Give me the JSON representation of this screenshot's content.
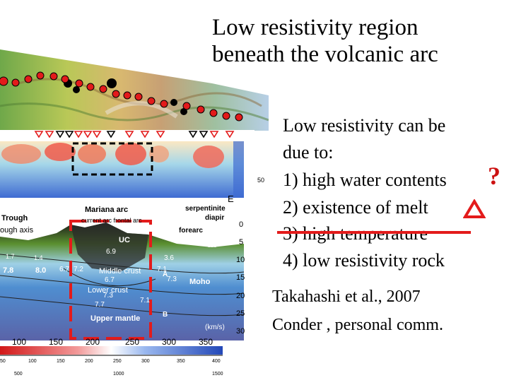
{
  "title": {
    "line1": "Low resistivity region",
    "line2": "beneath the volcanic arc"
  },
  "body": {
    "intro1": "Low resistivity can be",
    "intro2": "due to:",
    "item1": "1) high water contents",
    "item2": "2) existence of melt",
    "item3": "3) high temperature",
    "item4": "4) low resistivity rock",
    "item1_mark": "?",
    "item2_mark": "triangle-outline-icon",
    "item3_mark": "strikethrough"
  },
  "references": {
    "ref1": "Takahashi et al., 2007",
    "ref2": "Conder , personal comm."
  },
  "figure": {
    "section_labels": {
      "trough": "Trough",
      "trough_axis": "ough axis",
      "mariana_arc": "Mariana arc",
      "arc_sub": "current arc  frontal arc",
      "forearc": "forearc",
      "serpentinite": "serpentinite",
      "diapir": "diapir",
      "east": "E",
      "uc": "UC",
      "middle_crust": "Middle crust",
      "lower_crust": "Lower crust",
      "upper_mantle": "Upper mantle",
      "moho": "Moho",
      "velocity_unit": "(km/s)",
      "label_a": "A",
      "label_b": "B"
    },
    "velocity_values": [
      "7.8",
      "8.0",
      "6.7",
      "7.2",
      "6.7",
      "7.3",
      "7.7",
      "7.1",
      "7.1",
      "7.3",
      "6.9",
      "5.6",
      "3.6",
      "1.4",
      "1.7"
    ],
    "depth_ticks": [
      "0",
      "5",
      "10",
      "15",
      "20",
      "25",
      "30"
    ],
    "upper_tick": "50",
    "distance_ticks": [
      "100",
      "150",
      "200",
      "250",
      "300",
      "350"
    ],
    "bottom_ticks": [
      "50",
      "100",
      "150",
      "200",
      "250",
      "300",
      "350",
      "400"
    ],
    "bottom_ticks_2": [
      "500",
      "1000",
      "1500"
    ],
    "colors": {
      "highlight_red": "#e31b1b",
      "box_black": "#000000",
      "station_red": "#e31b1b"
    }
  }
}
